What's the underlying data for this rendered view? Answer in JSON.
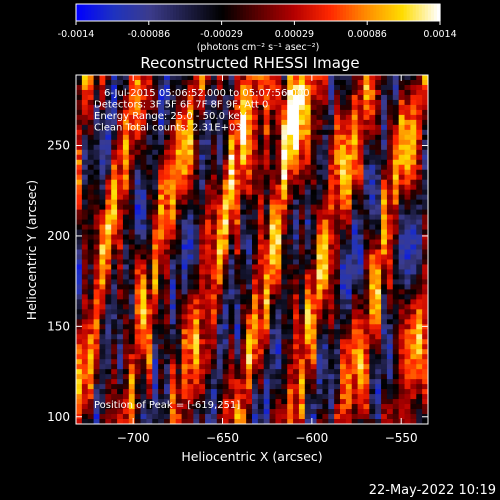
{
  "colors": {
    "background": "#000000",
    "foreground": "#ffffff",
    "colormap": [
      "#0000ff",
      "#1e32c0",
      "#3c3c8c",
      "#1e1e46",
      "#000000",
      "#5a0000",
      "#b40000",
      "#ff2800",
      "#ff8c00",
      "#ffdc00",
      "#ffffff"
    ]
  },
  "colorbar": {
    "tick_labels": [
      "-0.0014",
      "-0.00086",
      "-0.00029",
      "0.00029",
      "0.00086",
      "0.0014"
    ],
    "unit_label": "(photons cm⁻² s⁻¹ asec⁻²)",
    "range": [
      -0.0014,
      0.0014
    ]
  },
  "chart_data": {
    "type": "heatmap",
    "title": "Reconstructed RHESSI Image",
    "xlabel": "Heliocentric X (arcsec)",
    "ylabel": "Heliocentric Y (arcsec)",
    "xlim": [
      -732,
      -535
    ],
    "ylim": [
      96,
      289
    ],
    "x_ticks": [
      -700,
      -650,
      -600,
      -550
    ],
    "x_tick_labels": [
      "−700",
      "−650",
      "−600",
      "−550"
    ],
    "y_ticks": [
      100,
      150,
      200,
      250
    ],
    "y_tick_labels": [
      "100",
      "150",
      "200",
      "250"
    ],
    "annotations": [
      "6-Jul-2015 05:06:52.000 to 05:07:56.000",
      "Detectors: 3F 5F 6F 7F 8F 9F, Att 0",
      "Energy Range: 25.0 - 50.0 keV",
      "Clean      Total counts: 2.31E+03"
    ],
    "peak_label": "Position of Peak = [-619,251]",
    "peak_position": [
      -619,
      251
    ],
    "grid": false
  },
  "footer": {
    "timestamp": "22-May-2022 10:19"
  }
}
